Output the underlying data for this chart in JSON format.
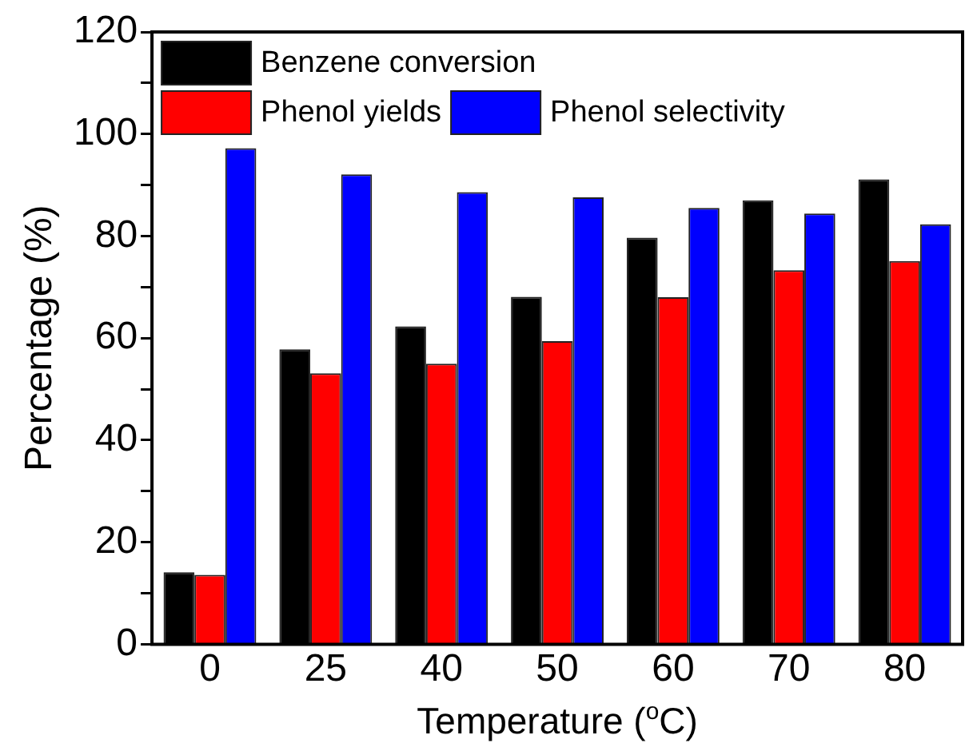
{
  "chart_data": {
    "type": "bar",
    "xlabel": "Temperature ($^{o}$C)",
    "ylabel": "Percentage (%)",
    "categories": [
      "0",
      "25",
      "40",
      "50",
      "60",
      "70",
      "80"
    ],
    "series": [
      {
        "name": "Benzene conversion",
        "color": "#000000",
        "values": [
          14.1,
          57.8,
          62.3,
          68.1,
          79.7,
          87.0,
          91.1
        ]
      },
      {
        "name": "Phenol yields",
        "color": "#ff0000",
        "values": [
          13.6,
          53.1,
          55.0,
          59.4,
          68.0,
          73.3,
          75.1
        ]
      },
      {
        "name": "Phenol selectivity",
        "color": "#0000ff",
        "values": [
          97.2,
          92.1,
          88.6,
          87.6,
          85.5,
          84.4,
          82.3
        ]
      }
    ],
    "ylim": [
      0,
      120
    ],
    "yticks": [
      0,
      {
        "value": 10,
        "label": null
      },
      20,
      {
        "value": 30,
        "label": null
      },
      40,
      {
        "value": 50,
        "label": null
      },
      60,
      {
        "value": 70,
        "label": null
      },
      80,
      {
        "value": 90,
        "label": null
      },
      100,
      {
        "value": 110,
        "label": null
      },
      120
    ],
    "legend": "top left",
    "grid": false
  }
}
